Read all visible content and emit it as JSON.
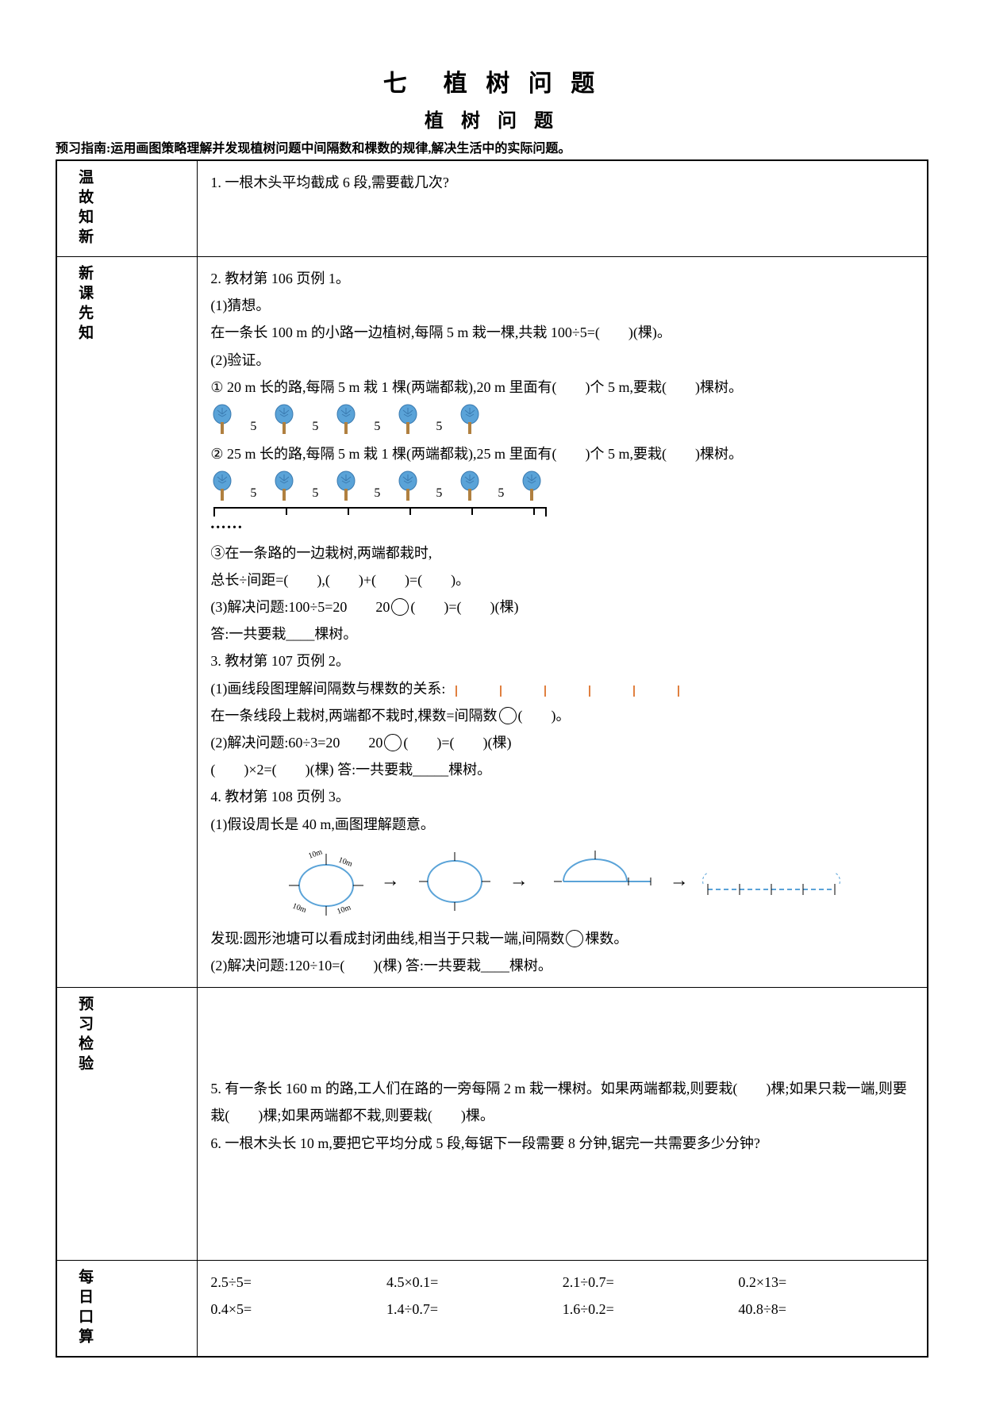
{
  "title": "七　植 树 问 题",
  "subtitle": "植 树 问 题",
  "guide": "预习指南:运用画图策略理解并发现植树问题中间隔数和棵数的规律,解决生活中的实际问题。",
  "section_labels": {
    "review": "温故知新",
    "new": "新课先知",
    "check": "预习检验",
    "daily": "每日口算"
  },
  "review": {
    "q1": "1. 一根木头平均截成 6 段,需要截几次?"
  },
  "new": {
    "p2_head": "2. 教材第 106 页例 1。",
    "p2_1": "(1)猜想。",
    "p2_1_text": "在一条长 100 m 的小路一边植树,每隔 5 m 栽一棵,共栽 100÷5=(　　)(棵)。",
    "p2_2": "(2)验证。",
    "p2_2_a": "① 20 m 长的路,每隔 5 m 栽 1 棵(两端都栽),20 m 里面有(　　)个 5 m,要栽(　　)棵树。",
    "p2_2_b": "② 25 m 长的路,每隔 5 m 栽 1 棵(两端都栽),25 m 里面有(　　)个 5 m,要栽(　　)棵树。",
    "tree_gap_label": "5",
    "tree_row1_count": 5,
    "tree_row2_count": 6,
    "p2_2_c": "③在一条路的一边栽树,两端都栽时,",
    "p2_2_c2": "总长÷间距=(　　),(　　)+(　　)=(　　)。",
    "p2_3": "(3)解决问题:100÷5=20　　20",
    "p2_3_tail": "(　　)=(　　)(棵)",
    "p2_ans": "答:一共要栽____棵树。",
    "p3_head": "3. 教材第 107 页例 2。",
    "p3_1": "(1)画线段图理解间隔数与棵数的关系:",
    "p3_1_text_a": "在一条线段上栽树,两端都不栽时,棵数=间隔数",
    "p3_1_text_b": "(　　)。",
    "p3_2": "(2)解决问题:60÷3=20　　20",
    "p3_2_tail": "(　　)=(　　)(棵)",
    "p3_2_line2": "(　　)×2=(　　)(棵)  答:一共要栽_____棵树。",
    "p4_head": "4. 教材第 108 页例 3。",
    "p4_1": "(1)假设周长是 40 m,画图理解题意。",
    "p4_find_a": "发现:圆形池塘可以看成封闭曲线,相当于只栽一端,间隔数",
    "p4_find_b": "棵数。",
    "p4_2": "(2)解决问题:120÷10=(　　)(棵)  答:一共要栽____棵树。",
    "pond_labels": [
      "10m",
      "10m",
      "10m",
      "10m"
    ]
  },
  "check": {
    "q5": "5. 有一条长 160 m 的路,工人们在路的一旁每隔 2 m 栽一棵树。如果两端都栽,则要栽(　　)棵;如果只栽一端,则要栽(　　)棵;如果两端都不栽,则要栽(　　)棵。",
    "q6": "6. 一根木头长 10 m,要把它平均分成 5 段,每锯下一段需要 8 分钟,锯完一共需要多少分钟?"
  },
  "daily": {
    "row1": [
      "2.5÷5=",
      "4.5×0.1=",
      "2.1÷0.7=",
      "0.2×13="
    ],
    "row2": [
      "0.4×5=",
      "1.4÷0.7=",
      "1.6÷0.2=",
      "40.8÷8="
    ]
  },
  "colors": {
    "tree_crown": "#5aa3d8",
    "tree_crown_stroke": "#3a7ab0",
    "tree_trunk": "#b08040",
    "line": "#000000",
    "segment": "#e08040",
    "pond_dash": "#5aa3d8"
  }
}
